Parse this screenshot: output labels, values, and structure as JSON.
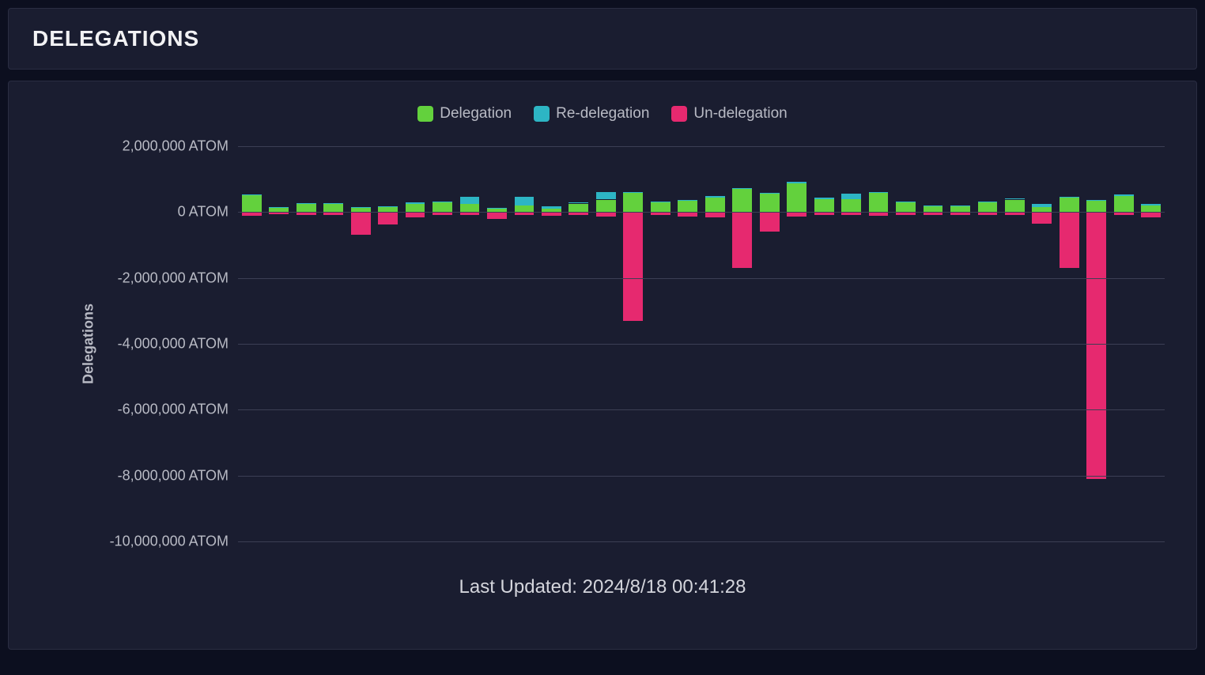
{
  "header": {
    "title": "DELEGATIONS"
  },
  "chart": {
    "type": "bar",
    "y_axis_title": "Delegations",
    "ylim": [
      -10000000,
      2000000
    ],
    "ytick_step": 2000000,
    "ytick_labels": [
      "2,000,000 ATOM",
      "0 ATOM",
      "-2,000,000 ATOM",
      "-4,000,000 ATOM",
      "-6,000,000 ATOM",
      "-8,000,000 ATOM",
      "-10,000,000 ATOM"
    ],
    "ytick_values": [
      2000000,
      0,
      -2000000,
      -4000000,
      -6000000,
      -8000000,
      -10000000
    ],
    "legend": [
      {
        "label": "Delegation",
        "color": "#63d13d"
      },
      {
        "label": "Re-delegation",
        "color": "#2db5c4"
      },
      {
        "label": "Un-delegation",
        "color": "#e6296f"
      }
    ],
    "colors": {
      "delegation": "#63d13d",
      "redelegation": "#2db5c4",
      "undelegation": "#e6296f",
      "grid": "#3c3f54",
      "panel_bg": "#1a1d30",
      "page_bg": "#0c0f1f",
      "text": "#b8bac4"
    },
    "bar_width_ratio": 0.72,
    "data": [
      {
        "delegation": 520000,
        "redelegation": 20000,
        "undelegation": -120000
      },
      {
        "delegation": 120000,
        "redelegation": 40000,
        "undelegation": -70000
      },
      {
        "delegation": 260000,
        "redelegation": 20000,
        "undelegation": -90000
      },
      {
        "delegation": 250000,
        "redelegation": 20000,
        "undelegation": -100000
      },
      {
        "delegation": 130000,
        "redelegation": 20000,
        "undelegation": -680000
      },
      {
        "delegation": 150000,
        "redelegation": 20000,
        "undelegation": -370000
      },
      {
        "delegation": 260000,
        "redelegation": 30000,
        "undelegation": -150000
      },
      {
        "delegation": 300000,
        "redelegation": 30000,
        "undelegation": -90000
      },
      {
        "delegation": 250000,
        "redelegation": 220000,
        "undelegation": -80000
      },
      {
        "delegation": 120000,
        "redelegation": 20000,
        "undelegation": -200000
      },
      {
        "delegation": 200000,
        "redelegation": 260000,
        "undelegation": -90000
      },
      {
        "delegation": 110000,
        "redelegation": 70000,
        "undelegation": -120000
      },
      {
        "delegation": 260000,
        "redelegation": 40000,
        "undelegation": -100000
      },
      {
        "delegation": 380000,
        "redelegation": 220000,
        "undelegation": -140000
      },
      {
        "delegation": 580000,
        "redelegation": 40000,
        "undelegation": -3300000
      },
      {
        "delegation": 300000,
        "redelegation": 20000,
        "undelegation": -90000
      },
      {
        "delegation": 340000,
        "redelegation": 20000,
        "undelegation": -140000
      },
      {
        "delegation": 450000,
        "redelegation": 30000,
        "undelegation": -160000
      },
      {
        "delegation": 700000,
        "redelegation": 30000,
        "undelegation": -1700000
      },
      {
        "delegation": 550000,
        "redelegation": 30000,
        "undelegation": -600000
      },
      {
        "delegation": 880000,
        "redelegation": 30000,
        "undelegation": -130000
      },
      {
        "delegation": 400000,
        "redelegation": 30000,
        "undelegation": -100000
      },
      {
        "delegation": 400000,
        "redelegation": 150000,
        "undelegation": -100000
      },
      {
        "delegation": 580000,
        "redelegation": 30000,
        "undelegation": -120000
      },
      {
        "delegation": 300000,
        "redelegation": 30000,
        "undelegation": -100000
      },
      {
        "delegation": 180000,
        "redelegation": 30000,
        "undelegation": -90000
      },
      {
        "delegation": 180000,
        "redelegation": 30000,
        "undelegation": -90000
      },
      {
        "delegation": 300000,
        "redelegation": 30000,
        "undelegation": -90000
      },
      {
        "delegation": 380000,
        "redelegation": 40000,
        "undelegation": -80000
      },
      {
        "delegation": 160000,
        "redelegation": 100000,
        "undelegation": -350000
      },
      {
        "delegation": 440000,
        "redelegation": 30000,
        "undelegation": -1700000
      },
      {
        "delegation": 350000,
        "redelegation": 30000,
        "undelegation": -8100000
      },
      {
        "delegation": 500000,
        "redelegation": 30000,
        "undelegation": -100000
      },
      {
        "delegation": 210000,
        "redelegation": 30000,
        "undelegation": -160000
      }
    ]
  },
  "footer": {
    "last_updated_label": "Last Updated: 2024/8/18 00:41:28"
  }
}
